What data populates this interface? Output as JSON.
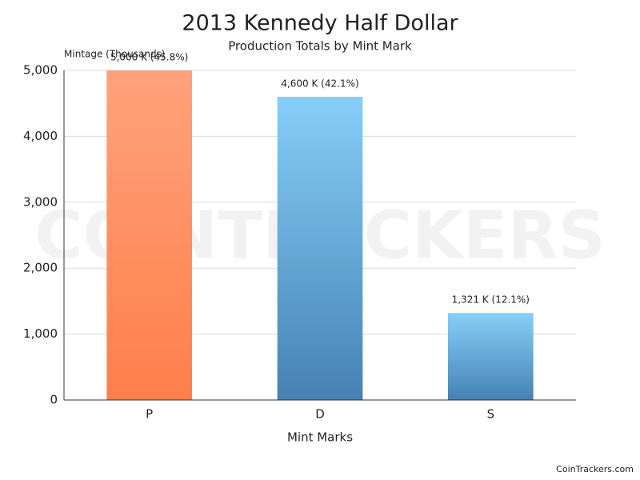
{
  "chart_data": {
    "type": "bar",
    "title": "2013 Kennedy Half Dollar",
    "subtitle": "Production Totals by Mint Mark",
    "y_label": "Mintage (Thousands)",
    "x_label": "Mint Marks",
    "categories": [
      "P",
      "D",
      "S"
    ],
    "values": [
      5000,
      4600,
      1321
    ],
    "value_labels": [
      "5,000 K (45.8%)",
      "4,600 K (42.1%)",
      "1,321 K (12.1%)"
    ],
    "colors": [
      "#ff7f4a",
      "#4682b4",
      "#4682b4"
    ],
    "colors_top": [
      "#ffa27c",
      "#87cefa",
      "#87cefa"
    ],
    "ylim": [
      0,
      5000
    ],
    "yticks": [
      0,
      {
        "value": 1000,
        "label": "1,000"
      },
      {
        "value": 2000,
        "label": "2,000"
      },
      {
        "value": 3000,
        "label": "3,000"
      },
      {
        "value": 4000,
        "label": "4,000"
      },
      {
        "value": 5000,
        "label": "5,000"
      }
    ],
    "grid": true,
    "watermark": "COINTRACKERS",
    "credit": "CoinTrackers.com"
  }
}
